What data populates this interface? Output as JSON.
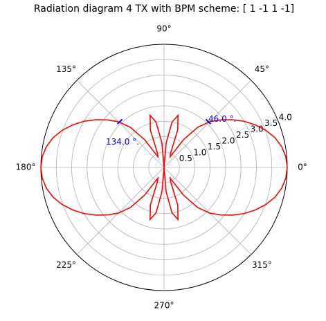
{
  "chart_data": {
    "type": "polar",
    "title": "Radiation diagram 4 TX with BPM scheme: [ 1 -1  1 -1]",
    "x": [
      0,
      5,
      10,
      15,
      20,
      25,
      30,
      35,
      40,
      45,
      50,
      55,
      60,
      65,
      70,
      75,
      80,
      85,
      90,
      95,
      100,
      105,
      110,
      115,
      120,
      125,
      130,
      135,
      140,
      145,
      150,
      155,
      160,
      165,
      170,
      175,
      180,
      185,
      190,
      195,
      200,
      205,
      210,
      215,
      220,
      225,
      230,
      235,
      240,
      245,
      250,
      255,
      260,
      265,
      270,
      275,
      280,
      285,
      290,
      295,
      300,
      305,
      310,
      315,
      320,
      325,
      330,
      335,
      340,
      345,
      350,
      355
    ],
    "values": [
      4.0,
      3.97,
      3.88,
      3.73,
      3.52,
      3.27,
      3.0,
      2.7,
      2.4,
      2.1,
      1.7,
      1.1,
      0.4,
      0.5,
      1.3,
      1.75,
      1.5,
      0.8,
      0,
      0.8,
      1.5,
      1.75,
      1.3,
      0.5,
      0.4,
      1.1,
      1.7,
      2.1,
      2.4,
      2.7,
      3.0,
      3.27,
      3.52,
      3.73,
      3.88,
      3.97,
      4.0,
      3.97,
      3.88,
      3.73,
      3.52,
      3.27,
      3.0,
      2.7,
      2.4,
      2.1,
      1.7,
      1.1,
      0.4,
      0.5,
      1.3,
      1.75,
      1.5,
      0.8,
      0,
      0.8,
      1.5,
      1.75,
      1.3,
      0.5,
      0.4,
      1.1,
      1.7,
      2.1,
      2.4,
      2.7,
      3.0,
      3.27,
      3.52,
      3.73,
      3.88,
      3.97
    ],
    "color": "#ff0000",
    "xticks": [
      {
        "value": 0,
        "label": "0°"
      },
      {
        "value": 45,
        "label": "45°"
      },
      {
        "value": 90,
        "label": "90°"
      },
      {
        "value": 135,
        "label": "135°"
      },
      {
        "value": 180,
        "label": "180°"
      },
      {
        "value": 225,
        "label": "225°"
      },
      {
        "value": 270,
        "label": "270°"
      },
      {
        "value": 315,
        "label": "315°"
      }
    ],
    "ylim": [
      0,
      4
    ],
    "yticks": [
      0.5,
      {
        "value": 1,
        "label": "1.0"
      },
      1.5,
      {
        "value": 2,
        "label": "2.0"
      },
      2.5,
      {
        "value": 3,
        "label": "3.0"
      },
      3.5,
      {
        "value": 4,
        "label": "4.0"
      }
    ],
    "grid": true,
    "annotations": [
      {
        "text": "46.0  °.",
        "angle": 46,
        "r": 2.07,
        "color": "#0000ff"
      },
      {
        "text": "134.0  °.",
        "angle": 134,
        "r": 2.07,
        "color": "#0000ff"
      }
    ]
  }
}
